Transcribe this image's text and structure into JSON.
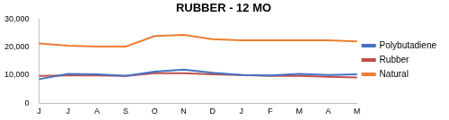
{
  "chart_data": {
    "type": "line",
    "title": "RUBBER - 12 MO",
    "categories": [
      "J",
      "J",
      "A",
      "S",
      "O",
      "N",
      "D",
      "J",
      "F",
      "M",
      "A",
      "M"
    ],
    "series": [
      {
        "name": "Polybutadiene",
        "color": "#4472c4",
        "values": [
          8600,
          10500,
          10300,
          9750,
          11250,
          12000,
          10900,
          10100,
          9900,
          10500,
          10100,
          10300
        ]
      },
      {
        "name": "Rubber",
        "color": "#c0504d",
        "values": [
          9750,
          9900,
          9900,
          9750,
          10700,
          10700,
          10300,
          10100,
          9750,
          9750,
          9400,
          9200
        ]
      },
      {
        "name": "Natural",
        "color": "#ed7d31",
        "values": [
          21400,
          20600,
          20250,
          20250,
          24000,
          24400,
          22900,
          22500,
          22500,
          22500,
          22500,
          22100
        ]
      }
    ],
    "ylim": [
      0,
      30000
    ],
    "yticks": [
      0,
      {
        "value": 10000,
        "label": "10,000"
      },
      {
        "value": 20000,
        "label": "20,000"
      },
      {
        "value": 30000,
        "label": "30,000"
      }
    ],
    "grid": false,
    "legend": "right"
  }
}
